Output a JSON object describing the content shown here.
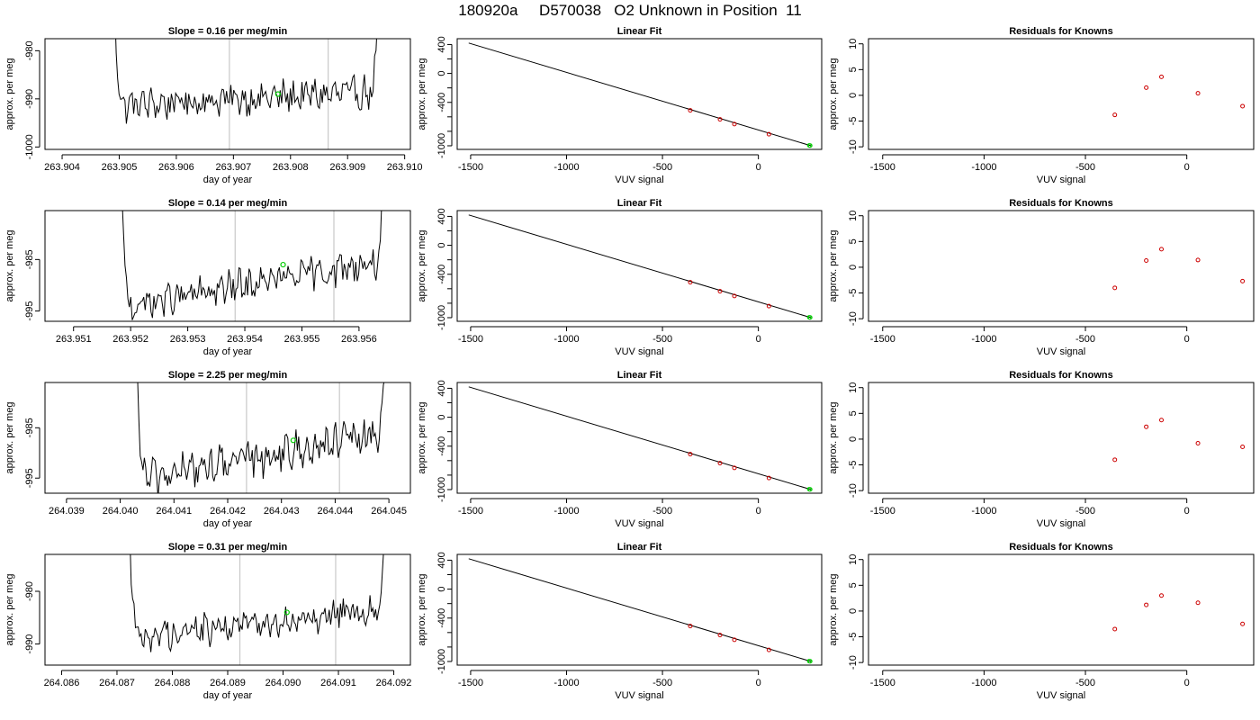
{
  "page_title": "180920a     D570038   O2 Unknown in Position  11",
  "chart_data": [
    {
      "type": "line",
      "panel": "trace",
      "row": 0,
      "title": "Slope =  0.16  per meg/min",
      "xlabel": "day of year",
      "ylabel": "approx. per meg",
      "xlim": [
        263.9037,
        263.9101
      ],
      "ylim": [
        -1000.5,
        -977.5
      ],
      "xticks": [
        "263.904",
        "263.905",
        "263.906",
        "263.907",
        "263.908",
        "263.909",
        "263.910"
      ],
      "xtick_values": [
        263.904,
        263.905,
        263.906,
        263.907,
        263.908,
        263.909,
        263.91
      ],
      "yticks": [
        "-1000",
        "-990",
        "-980"
      ],
      "ytick_values": [
        -1000,
        -990,
        -980
      ],
      "vlines": [
        263.90693,
        263.90866
      ],
      "trace_start": 263.90482,
      "trace_end": 263.90965,
      "baseline_start": -991.5,
      "baseline_end": -988.5,
      "noise": 2.8,
      "marker": {
        "x": 263.90778,
        "y": -989,
        "color": "#00cc00"
      }
    },
    {
      "type": "line",
      "panel": "fit",
      "row": 0,
      "title": "Linear Fit",
      "xlabel": "VUV signal",
      "ylabel": "approx. per meg",
      "xlim": [
        -1570,
        330
      ],
      "ylim": [
        -1050,
        480
      ],
      "xticks": [
        "-1500",
        "-1000",
        "-500",
        "0"
      ],
      "xtick_values": [
        -1500,
        -1000,
        -500,
        0
      ],
      "yticks": [
        "-1000",
        "-800",
        "-600",
        "-400",
        "-200",
        "0",
        "200",
        "400"
      ],
      "ytick_labels_shown": [
        "-1000",
        "-400",
        "0",
        "400"
      ],
      "ytick_values": [
        -1000,
        -800,
        -600,
        -400,
        -200,
        0,
        200,
        400
      ],
      "line": {
        "x": [
          -1510,
          275
        ],
        "y": [
          420,
          -1000
        ]
      },
      "knowns": {
        "x": [
          -355,
          -200,
          -125,
          55
        ],
        "y": [
          -510,
          -635,
          -700,
          -840
        ],
        "color": "#cc0000"
      },
      "unknown": {
        "x": [
          265,
          270
        ],
        "y": [
          -995,
          -997
        ],
        "color": "#00cc00"
      }
    },
    {
      "type": "scatter",
      "panel": "residuals",
      "row": 0,
      "title": "Residuals for Knowns",
      "xlabel": "VUV signal",
      "ylabel": "approx. per meg",
      "xlim": [
        -1570,
        330
      ],
      "ylim": [
        -10.5,
        11
      ],
      "xticks": [
        "-1500",
        "-1000",
        "-500",
        "0"
      ],
      "xtick_values": [
        -1500,
        -1000,
        -500,
        0
      ],
      "yticks": [
        "-10",
        "-5",
        "0",
        "5",
        "10"
      ],
      "ytick_values": [
        -10,
        -5,
        0,
        5,
        10
      ],
      "x": [
        -355,
        -200,
        -125,
        55,
        275
      ],
      "y": [
        -3.8,
        1.5,
        3.6,
        0.4,
        -2.1
      ],
      "color": "#cc0000"
    },
    {
      "type": "line",
      "panel": "trace",
      "row": 1,
      "title": "Slope =  0.14  per meg/min",
      "xlabel": "day of year",
      "ylabel": "approx. per meg",
      "xlim": [
        263.9505,
        263.9569
      ],
      "ylim": [
        -997,
        -975.5
      ],
      "xticks": [
        "263.951",
        "263.952",
        "263.953",
        "263.954",
        "263.955",
        "263.956"
      ],
      "xtick_values": [
        263.951,
        263.952,
        263.953,
        263.954,
        263.955,
        263.956
      ],
      "yticks": [
        "-995",
        "-985"
      ],
      "ytick_values": [
        -995,
        -985
      ],
      "vlines": [
        263.95383,
        263.95556
      ],
      "trace_start": 263.95175,
      "trace_end": 263.95655,
      "baseline_start": -994.5,
      "baseline_end": -985,
      "noise": 2.6,
      "marker": {
        "x": 263.95467,
        "y": -986,
        "color": "#00cc00"
      }
    },
    {
      "type": "line",
      "panel": "fit",
      "row": 1,
      "title": "Linear Fit",
      "xlabel": "VUV signal",
      "ylabel": "approx. per meg",
      "xlim": [
        -1570,
        330
      ],
      "ylim": [
        -1050,
        480
      ],
      "xticks": [
        "-1500",
        "-1000",
        "-500",
        "0"
      ],
      "xtick_values": [
        -1500,
        -1000,
        -500,
        0
      ],
      "yticks": [
        "-1000",
        "-800",
        "-600",
        "-400",
        "-200",
        "0",
        "200",
        "400"
      ],
      "ytick_labels_shown": [
        "-1000",
        "-400",
        "0",
        "400"
      ],
      "ytick_values": [
        -1000,
        -800,
        -600,
        -400,
        -200,
        0,
        200,
        400
      ],
      "line": {
        "x": [
          -1510,
          275
        ],
        "y": [
          420,
          -1000
        ]
      },
      "knowns": {
        "x": [
          -355,
          -200,
          -125,
          55
        ],
        "y": [
          -510,
          -635,
          -700,
          -840
        ],
        "color": "#cc0000"
      },
      "unknown": {
        "x": [
          265,
          270
        ],
        "y": [
          -995,
          -997
        ],
        "color": "#00cc00"
      }
    },
    {
      "type": "scatter",
      "panel": "residuals",
      "row": 1,
      "title": "Residuals for Knowns",
      "xlabel": "VUV signal",
      "ylabel": "approx. per meg",
      "xlim": [
        -1570,
        330
      ],
      "ylim": [
        -10.5,
        11
      ],
      "xticks": [
        "-1500",
        "-1000",
        "-500",
        "0"
      ],
      "xtick_values": [
        -1500,
        -1000,
        -500,
        0
      ],
      "yticks": [
        "-10",
        "-5",
        "0",
        "5",
        "10"
      ],
      "ytick_values": [
        -10,
        -5,
        0,
        5,
        10
      ],
      "x": [
        -355,
        -200,
        -125,
        55,
        275
      ],
      "y": [
        -4.0,
        1.3,
        3.5,
        1.4,
        -2.7
      ],
      "color": "#cc0000"
    },
    {
      "type": "line",
      "panel": "trace",
      "row": 2,
      "title": "Slope =  2.25  per meg/min",
      "xlabel": "day of year",
      "ylabel": "approx. per meg",
      "xlim": [
        264.0386,
        264.0454
      ],
      "ylim": [
        -998,
        -976
      ],
      "xticks": [
        "264.039",
        "264.040",
        "264.041",
        "264.042",
        "264.043",
        "264.044",
        "264.045"
      ],
      "xtick_values": [
        264.039,
        264.04,
        264.041,
        264.042,
        264.043,
        264.044,
        264.045
      ],
      "yticks": [
        "-995",
        "-985"
      ],
      "ytick_values": [
        -995,
        -985
      ],
      "vlines": [
        264.04235,
        264.04408
      ],
      "trace_start": 264.04022,
      "trace_end": 264.04505,
      "baseline_start": -995.5,
      "baseline_end": -986,
      "noise": 3.0,
      "marker": {
        "x": 264.04322,
        "y": -987.5,
        "color": "#00cc00"
      }
    },
    {
      "type": "line",
      "panel": "fit",
      "row": 2,
      "title": "Linear Fit",
      "xlabel": "VUV signal",
      "ylabel": "approx. per meg",
      "xlim": [
        -1570,
        330
      ],
      "ylim": [
        -1050,
        480
      ],
      "xticks": [
        "-1500",
        "-1000",
        "-500",
        "0"
      ],
      "xtick_values": [
        -1500,
        -1000,
        -500,
        0
      ],
      "yticks": [
        "-1000",
        "-800",
        "-600",
        "-400",
        "-200",
        "0",
        "200",
        "400"
      ],
      "ytick_labels_shown": [
        "-1000",
        "-400",
        "0",
        "400"
      ],
      "ytick_values": [
        -1000,
        -800,
        -600,
        -400,
        -200,
        0,
        200,
        400
      ],
      "line": {
        "x": [
          -1510,
          275
        ],
        "y": [
          420,
          -1000
        ]
      },
      "knowns": {
        "x": [
          -355,
          -200,
          -125,
          55
        ],
        "y": [
          -510,
          -635,
          -700,
          -840
        ],
        "color": "#cc0000"
      },
      "unknown": {
        "x": [
          265,
          270
        ],
        "y": [
          -995,
          -997
        ],
        "color": "#00cc00"
      }
    },
    {
      "type": "scatter",
      "panel": "residuals",
      "row": 2,
      "title": "Residuals for Knowns",
      "xlabel": "VUV signal",
      "ylabel": "approx. per meg",
      "xlim": [
        -1570,
        330
      ],
      "ylim": [
        -10.5,
        11
      ],
      "xticks": [
        "-1500",
        "-1000",
        "-500",
        "0"
      ],
      "xtick_values": [
        -1500,
        -1000,
        -500,
        0
      ],
      "yticks": [
        "-10",
        "-5",
        "0",
        "5",
        "10"
      ],
      "ytick_values": [
        -10,
        -5,
        0,
        5,
        10
      ],
      "x": [
        -355,
        -200,
        -125,
        55,
        275
      ],
      "y": [
        -4.0,
        2.4,
        3.7,
        -0.8,
        -1.5
      ],
      "color": "#cc0000"
    },
    {
      "type": "line",
      "panel": "trace",
      "row": 3,
      "title": "Slope =  0.31  per meg/min",
      "xlabel": "day of year",
      "ylabel": "approx. per meg",
      "xlim": [
        264.0857,
        264.0923
      ],
      "ylim": [
        -994,
        -973
      ],
      "xticks": [
        "264.086",
        "264.087",
        "264.088",
        "264.089",
        "264.090",
        "264.091",
        "264.092"
      ],
      "xtick_values": [
        264.086,
        264.087,
        264.088,
        264.089,
        264.09,
        264.091,
        264.092
      ],
      "yticks": [
        "-990",
        "-980"
      ],
      "ytick_values": [
        -990,
        -980
      ],
      "vlines": [
        264.08922,
        264.09095
      ],
      "trace_start": 264.08713,
      "trace_end": 264.09195,
      "baseline_start": -989,
      "baseline_end": -983,
      "noise": 2.4,
      "marker": {
        "x": 264.09007,
        "y": -984,
        "color": "#00cc00"
      }
    },
    {
      "type": "line",
      "panel": "fit",
      "row": 3,
      "title": "Linear Fit",
      "xlabel": "VUV signal",
      "ylabel": "approx. per meg",
      "xlim": [
        -1570,
        330
      ],
      "ylim": [
        -1050,
        480
      ],
      "xticks": [
        "-1500",
        "-1000",
        "-500",
        "0"
      ],
      "xtick_values": [
        -1500,
        -1000,
        -500,
        0
      ],
      "yticks": [
        "-1000",
        "-800",
        "-600",
        "-400",
        "-200",
        "0",
        "200",
        "400"
      ],
      "ytick_labels_shown": [
        "-1000",
        "-400",
        "0",
        "400"
      ],
      "ytick_values": [
        -1000,
        -800,
        -600,
        -400,
        -200,
        0,
        200,
        400
      ],
      "line": {
        "x": [
          -1510,
          275
        ],
        "y": [
          420,
          -1000
        ]
      },
      "knowns": {
        "x": [
          -355,
          -200,
          -125,
          55
        ],
        "y": [
          -510,
          -635,
          -700,
          -840
        ],
        "color": "#cc0000"
      },
      "unknown": {
        "x": [
          265,
          270
        ],
        "y": [
          -995,
          -997
        ],
        "color": "#00cc00"
      }
    },
    {
      "type": "scatter",
      "panel": "residuals",
      "row": 3,
      "title": "Residuals for Knowns",
      "xlabel": "VUV signal",
      "ylabel": "approx. per meg",
      "xlim": [
        -1570,
        330
      ],
      "ylim": [
        -10.5,
        11
      ],
      "xticks": [
        "-1500",
        "-1000",
        "-500",
        "0"
      ],
      "xtick_values": [
        -1500,
        -1000,
        -500,
        0
      ],
      "yticks": [
        "-10",
        "-5",
        "0",
        "5",
        "10"
      ],
      "ytick_values": [
        -10,
        -5,
        0,
        5,
        10
      ],
      "x": [
        -355,
        -200,
        -125,
        55,
        275
      ],
      "y": [
        -3.5,
        1.2,
        3.0,
        1.6,
        -2.5
      ],
      "color": "#cc0000"
    }
  ]
}
